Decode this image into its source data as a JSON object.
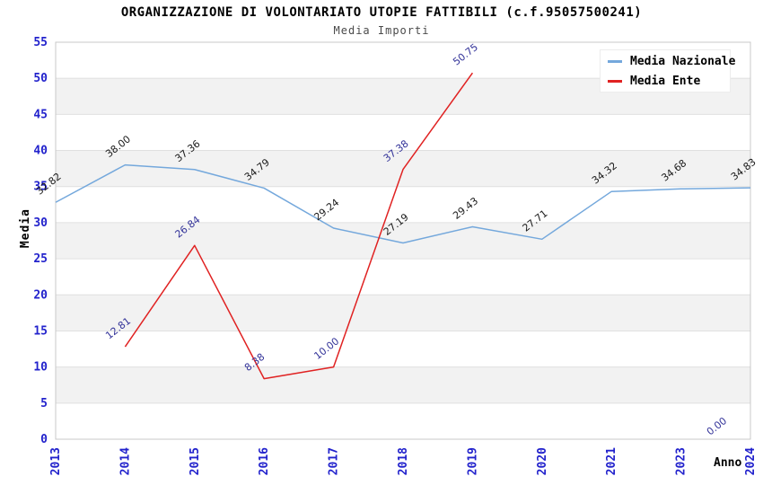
{
  "chart_data": {
    "type": "line",
    "title": "ORGANIZZAZIONE DI VOLONTARIATO UTOPIE FATTIBILI (c.f.95057500241)",
    "subtitle": "Media Importi",
    "xlabel": "Anno",
    "ylabel": "Media",
    "ylim": [
      0,
      55
    ],
    "ytick_step": 5,
    "yticks": [
      0,
      5,
      10,
      15,
      20,
      25,
      30,
      35,
      40,
      45,
      50,
      55
    ],
    "categories": [
      "2013",
      "2014",
      "2015",
      "2016",
      "2017",
      "2018",
      "2019",
      "2020",
      "2021",
      "2023",
      "2024"
    ],
    "grid": {
      "horizontal_gridlines": true,
      "vertical_gridlines": false,
      "alternating_bands": true,
      "band_color": "#f2f2f2",
      "gridline_color": "#e0e0e0",
      "border_color": "#c9c9c9"
    },
    "legend": {
      "position": "top-right",
      "background": "#ffffff"
    },
    "axis_tick_color": "#2222cc",
    "value_label_decimals": 2,
    "series": [
      {
        "name": "Media Nazionale",
        "color": "#74a8dc",
        "label_color": "#1a1a1a",
        "values": [
          32.82,
          38.0,
          37.36,
          34.79,
          29.24,
          27.19,
          29.43,
          27.71,
          34.32,
          34.68,
          34.83
        ]
      },
      {
        "name": "Media Ente",
        "color": "#e02222",
        "label_color": "#333399",
        "values": [
          null,
          12.81,
          26.84,
          8.38,
          10.0,
          37.38,
          50.75,
          null,
          null,
          null,
          0.0
        ]
      }
    ]
  }
}
